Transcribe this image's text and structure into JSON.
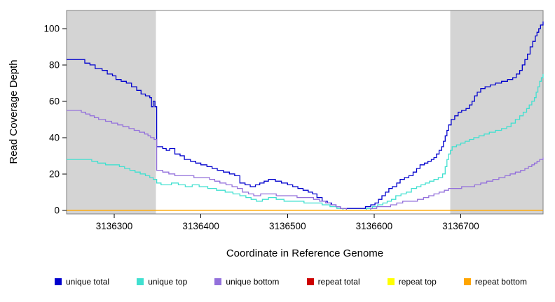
{
  "figure": {
    "background": "#ffffff",
    "shade_color": "#d4d4d4",
    "box_color": "#7f7f7f",
    "tick_color": "#000000",
    "text_color": "#000000"
  },
  "chart_data": {
    "type": "line",
    "step": true,
    "title": "",
    "xlabel": "Coordinate in Reference Genome",
    "ylabel": "Read Coverage Depth",
    "xlim": [
      3136245,
      3136795
    ],
    "ylim": [
      0,
      105
    ],
    "xlim_draw": [
      3136245,
      3136795
    ],
    "ylim_draw": [
      -2,
      110
    ],
    "xticks": [
      3136300,
      3136400,
      3136500,
      3136600,
      3136700
    ],
    "yticks": [
      0,
      20,
      40,
      60,
      80,
      100
    ],
    "grid": false,
    "legend_position": "bottom",
    "shaded_regions": [
      {
        "x0": 3136245,
        "x1": 3136348,
        "color": "#d4d4d4"
      },
      {
        "x0": 3136688,
        "x1": 3136795,
        "color": "#d4d4d4"
      }
    ],
    "series": [
      {
        "name": "unique total",
        "color": "#0000CD",
        "points": [
          [
            3136245,
            83
          ],
          [
            3136262,
            83
          ],
          [
            3136266,
            81
          ],
          [
            3136272,
            80
          ],
          [
            3136278,
            78
          ],
          [
            3136286,
            77
          ],
          [
            3136292,
            75
          ],
          [
            3136298,
            74
          ],
          [
            3136302,
            72
          ],
          [
            3136308,
            71
          ],
          [
            3136314,
            70
          ],
          [
            3136320,
            68
          ],
          [
            3136326,
            66
          ],
          [
            3136331,
            64
          ],
          [
            3136336,
            63
          ],
          [
            3136341,
            62
          ],
          [
            3136343,
            57
          ],
          [
            3136345,
            60
          ],
          [
            3136347,
            57
          ],
          [
            3136349,
            35
          ],
          [
            3136356,
            34
          ],
          [
            3136360,
            33
          ],
          [
            3136364,
            34
          ],
          [
            3136370,
            31
          ],
          [
            3136376,
            30
          ],
          [
            3136381,
            28
          ],
          [
            3136388,
            27
          ],
          [
            3136394,
            26
          ],
          [
            3136400,
            25
          ],
          [
            3136407,
            24
          ],
          [
            3136413,
            23
          ],
          [
            3136419,
            22
          ],
          [
            3136426,
            21
          ],
          [
            3136433,
            20
          ],
          [
            3136439,
            19
          ],
          [
            3136445,
            15
          ],
          [
            3136451,
            14
          ],
          [
            3136457,
            13
          ],
          [
            3136463,
            14
          ],
          [
            3136468,
            15
          ],
          [
            3136473,
            16
          ],
          [
            3136478,
            17
          ],
          [
            3136486,
            16
          ],
          [
            3136493,
            15
          ],
          [
            3136500,
            14
          ],
          [
            3136506,
            13
          ],
          [
            3136512,
            12
          ],
          [
            3136518,
            11
          ],
          [
            3136524,
            10
          ],
          [
            3136529,
            9
          ],
          [
            3136534,
            7
          ],
          [
            3136540,
            5
          ],
          [
            3136546,
            4
          ],
          [
            3136551,
            3
          ],
          [
            3136556,
            2
          ],
          [
            3136561,
            1
          ],
          [
            3136584,
            1
          ],
          [
            3136590,
            2
          ],
          [
            3136596,
            3
          ],
          [
            3136601,
            4
          ],
          [
            3136605,
            6
          ],
          [
            3136609,
            8
          ],
          [
            3136613,
            10
          ],
          [
            3136617,
            12
          ],
          [
            3136621,
            13
          ],
          [
            3136626,
            15
          ],
          [
            3136630,
            17
          ],
          [
            3136635,
            18
          ],
          [
            3136640,
            19
          ],
          [
            3136645,
            21
          ],
          [
            3136649,
            23
          ],
          [
            3136653,
            25
          ],
          [
            3136658,
            26
          ],
          [
            3136662,
            27
          ],
          [
            3136666,
            28
          ],
          [
            3136669,
            29
          ],
          [
            3136672,
            31
          ],
          [
            3136675,
            33
          ],
          [
            3136678,
            35
          ],
          [
            3136680,
            38
          ],
          [
            3136682,
            41
          ],
          [
            3136684,
            44
          ],
          [
            3136686,
            47
          ],
          [
            3136689,
            50
          ],
          [
            3136693,
            52
          ],
          [
            3136697,
            54
          ],
          [
            3136701,
            55
          ],
          [
            3136706,
            56
          ],
          [
            3136710,
            58
          ],
          [
            3136713,
            60
          ],
          [
            3136716,
            63
          ],
          [
            3136719,
            65
          ],
          [
            3136723,
            67
          ],
          [
            3136728,
            68
          ],
          [
            3136734,
            69
          ],
          [
            3136740,
            70
          ],
          [
            3136747,
            71
          ],
          [
            3136754,
            72
          ],
          [
            3136760,
            73
          ],
          [
            3136764,
            75
          ],
          [
            3136768,
            77
          ],
          [
            3136771,
            80
          ],
          [
            3136774,
            83
          ],
          [
            3136777,
            86
          ],
          [
            3136780,
            90
          ],
          [
            3136783,
            93
          ],
          [
            3136786,
            96
          ],
          [
            3136788,
            98
          ],
          [
            3136790,
            100
          ],
          [
            3136792,
            102
          ],
          [
            3136795,
            104
          ]
        ]
      },
      {
        "name": "unique top",
        "color": "#40E0D0",
        "points": [
          [
            3136245,
            28
          ],
          [
            3136270,
            28
          ],
          [
            3136274,
            27
          ],
          [
            3136281,
            26
          ],
          [
            3136290,
            25
          ],
          [
            3136300,
            25
          ],
          [
            3136306,
            24
          ],
          [
            3136312,
            23
          ],
          [
            3136318,
            22
          ],
          [
            3136324,
            21
          ],
          [
            3136330,
            20
          ],
          [
            3136336,
            19
          ],
          [
            3136341,
            18
          ],
          [
            3136345,
            17
          ],
          [
            3136349,
            15
          ],
          [
            3136354,
            14
          ],
          [
            3136366,
            15
          ],
          [
            3136374,
            14
          ],
          [
            3136382,
            13
          ],
          [
            3136390,
            14
          ],
          [
            3136398,
            13
          ],
          [
            3136408,
            12
          ],
          [
            3136418,
            11
          ],
          [
            3136428,
            10
          ],
          [
            3136437,
            9
          ],
          [
            3136445,
            8
          ],
          [
            3136452,
            7
          ],
          [
            3136458,
            6
          ],
          [
            3136464,
            5
          ],
          [
            3136471,
            6
          ],
          [
            3136478,
            7
          ],
          [
            3136487,
            6
          ],
          [
            3136496,
            5
          ],
          [
            3136510,
            5
          ],
          [
            3136519,
            4
          ],
          [
            3136532,
            4
          ],
          [
            3136540,
            3
          ],
          [
            3136549,
            2
          ],
          [
            3136557,
            1
          ],
          [
            3136564,
            0
          ],
          [
            3136586,
            0
          ],
          [
            3136591,
            1
          ],
          [
            3136598,
            2
          ],
          [
            3136604,
            3
          ],
          [
            3136610,
            4
          ],
          [
            3136615,
            5
          ],
          [
            3136620,
            6
          ],
          [
            3136625,
            8
          ],
          [
            3136631,
            9
          ],
          [
            3136637,
            10
          ],
          [
            3136643,
            12
          ],
          [
            3136649,
            13
          ],
          [
            3136654,
            14
          ],
          [
            3136659,
            15
          ],
          [
            3136664,
            16
          ],
          [
            3136669,
            17
          ],
          [
            3136674,
            18
          ],
          [
            3136679,
            20
          ],
          [
            3136682,
            24
          ],
          [
            3136684,
            28
          ],
          [
            3136686,
            31
          ],
          [
            3136688,
            33
          ],
          [
            3136690,
            35
          ],
          [
            3136695,
            36
          ],
          [
            3136700,
            37
          ],
          [
            3136705,
            38
          ],
          [
            3136710,
            39
          ],
          [
            3136715,
            40
          ],
          [
            3136721,
            41
          ],
          [
            3136727,
            42
          ],
          [
            3136733,
            43
          ],
          [
            3136740,
            44
          ],
          [
            3136747,
            45
          ],
          [
            3136753,
            46
          ],
          [
            3136758,
            48
          ],
          [
            3136763,
            50
          ],
          [
            3136768,
            52
          ],
          [
            3136772,
            54
          ],
          [
            3136776,
            56
          ],
          [
            3136779,
            58
          ],
          [
            3136782,
            60
          ],
          [
            3136785,
            62
          ],
          [
            3136787,
            65
          ],
          [
            3136789,
            68
          ],
          [
            3136791,
            71
          ],
          [
            3136793,
            73
          ],
          [
            3136795,
            75
          ]
        ]
      },
      {
        "name": "unique bottom",
        "color": "#9370DB",
        "points": [
          [
            3136245,
            55
          ],
          [
            3136258,
            55
          ],
          [
            3136262,
            54
          ],
          [
            3136267,
            53
          ],
          [
            3136272,
            52
          ],
          [
            3136277,
            51
          ],
          [
            3136282,
            50
          ],
          [
            3136290,
            49
          ],
          [
            3136297,
            48
          ],
          [
            3136304,
            47
          ],
          [
            3136310,
            46
          ],
          [
            3136317,
            45
          ],
          [
            3136323,
            44
          ],
          [
            3136329,
            43
          ],
          [
            3136335,
            42
          ],
          [
            3136339,
            41
          ],
          [
            3136342,
            40
          ],
          [
            3136346,
            39
          ],
          [
            3136349,
            22
          ],
          [
            3136356,
            21
          ],
          [
            3136363,
            20
          ],
          [
            3136370,
            19
          ],
          [
            3136385,
            19
          ],
          [
            3136392,
            18
          ],
          [
            3136404,
            18
          ],
          [
            3136410,
            17
          ],
          [
            3136416,
            16
          ],
          [
            3136422,
            15
          ],
          [
            3136429,
            14
          ],
          [
            3136436,
            13
          ],
          [
            3136442,
            12
          ],
          [
            3136448,
            10
          ],
          [
            3136455,
            9
          ],
          [
            3136461,
            8
          ],
          [
            3136469,
            9
          ],
          [
            3136480,
            9
          ],
          [
            3136487,
            8
          ],
          [
            3136502,
            8
          ],
          [
            3136511,
            7
          ],
          [
            3136523,
            7
          ],
          [
            3136530,
            6
          ],
          [
            3136537,
            5
          ],
          [
            3136544,
            4
          ],
          [
            3136550,
            3
          ],
          [
            3136556,
            2
          ],
          [
            3136561,
            1
          ],
          [
            3136568,
            0
          ],
          [
            3136590,
            0
          ],
          [
            3136596,
            1
          ],
          [
            3136603,
            2
          ],
          [
            3136612,
            2
          ],
          [
            3136619,
            3
          ],
          [
            3136626,
            4
          ],
          [
            3136633,
            5
          ],
          [
            3136642,
            5
          ],
          [
            3136650,
            6
          ],
          [
            3136657,
            7
          ],
          [
            3136663,
            8
          ],
          [
            3136669,
            9
          ],
          [
            3136675,
            10
          ],
          [
            3136681,
            11
          ],
          [
            3136686,
            12
          ],
          [
            3136694,
            12
          ],
          [
            3136701,
            13
          ],
          [
            3136709,
            13
          ],
          [
            3136716,
            14
          ],
          [
            3136723,
            15
          ],
          [
            3136730,
            16
          ],
          [
            3136737,
            17
          ],
          [
            3136744,
            18
          ],
          [
            3136751,
            19
          ],
          [
            3136757,
            20
          ],
          [
            3136763,
            21
          ],
          [
            3136769,
            22
          ],
          [
            3136774,
            23
          ],
          [
            3136778,
            24
          ],
          [
            3136782,
            25
          ],
          [
            3136785,
            26
          ],
          [
            3136788,
            27
          ],
          [
            3136791,
            28
          ],
          [
            3136795,
            29
          ]
        ]
      },
      {
        "name": "repeat total",
        "color": "#CD0000",
        "points": [
          [
            3136245,
            0
          ],
          [
            3136795,
            0
          ]
        ]
      },
      {
        "name": "repeat top",
        "color": "#FFFF00",
        "points": [
          [
            3136245,
            0
          ],
          [
            3136795,
            0
          ]
        ]
      },
      {
        "name": "repeat bottom",
        "color": "#FFA500",
        "points": [
          [
            3136245,
            0
          ],
          [
            3136795,
            0
          ]
        ]
      }
    ]
  },
  "legend": {
    "items": [
      {
        "label": "unique total",
        "color": "#0000CD"
      },
      {
        "label": "unique top",
        "color": "#40E0D0"
      },
      {
        "label": "unique bottom",
        "color": "#9370DB"
      },
      {
        "label": "repeat total",
        "color": "#CD0000"
      },
      {
        "label": "repeat top",
        "color": "#FFFF00"
      },
      {
        "label": "repeat bottom",
        "color": "#FFA500"
      }
    ]
  }
}
